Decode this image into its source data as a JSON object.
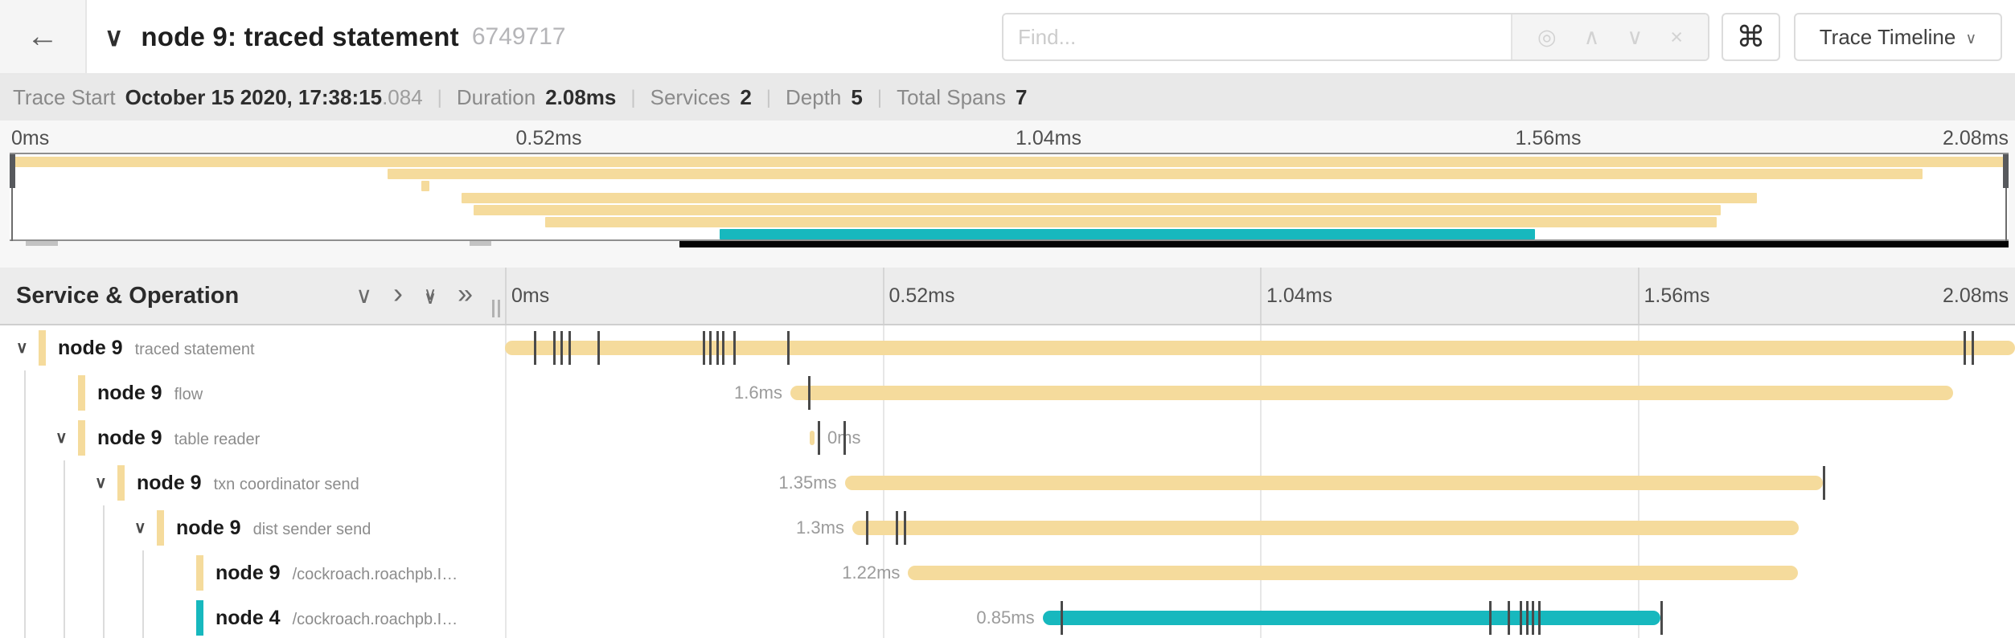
{
  "header": {
    "back_icon": "←",
    "collapse_icon": "∨",
    "title": "node 9: traced statement",
    "trace_id_short": "6749717",
    "find_placeholder": "Find...",
    "find_tools": [
      {
        "name": "locate-icon",
        "glyph": "◎"
      },
      {
        "name": "prev-result-icon",
        "glyph": "∧"
      },
      {
        "name": "next-result-icon",
        "glyph": "∨"
      },
      {
        "name": "clear-find-icon",
        "glyph": "×"
      }
    ],
    "shortcut_icon": "⌘",
    "view_selector": {
      "label": "Trace Timeline",
      "chevron": "∨"
    }
  },
  "summary": {
    "items": [
      {
        "label": "Trace Start",
        "value": "October 15 2020, 17:38:15",
        "suffix": ".084"
      },
      {
        "label": "Duration",
        "value": "2.08ms",
        "suffix": ""
      },
      {
        "label": "Services",
        "value": "2",
        "suffix": ""
      },
      {
        "label": "Depth",
        "value": "5",
        "suffix": ""
      },
      {
        "label": "Total Spans",
        "value": "7",
        "suffix": ""
      }
    ],
    "separator": "|"
  },
  "axis": {
    "ticks": [
      {
        "label": "0ms",
        "pct": 0
      },
      {
        "label": "0.52ms",
        "pct": 25
      },
      {
        "label": "1.04ms",
        "pct": 50
      },
      {
        "label": "1.56ms",
        "pct": 75
      },
      {
        "label": "2.08ms",
        "pct": 100
      }
    ]
  },
  "minimap": {
    "bars": [
      {
        "start": 0,
        "end": 100,
        "color": "tan"
      },
      {
        "start": 18.9,
        "end": 95.7,
        "color": "tan"
      },
      {
        "start": 20.6,
        "end": 21.0,
        "color": "tan"
      },
      {
        "start": 22.6,
        "end": 87.4,
        "color": "tan"
      },
      {
        "start": 23.2,
        "end": 85.6,
        "color": "tan"
      },
      {
        "start": 26.8,
        "end": 85.4,
        "color": "tan"
      },
      {
        "start": 35.5,
        "end": 76.3,
        "color": "teal"
      }
    ],
    "viewport": {
      "thumb_start_pct": 33.5,
      "nubs": [
        {
          "start_pct": 0.8,
          "width_pct": 1.6
        },
        {
          "start_pct": 23.0,
          "width_pct": 1.1
        }
      ]
    }
  },
  "grid_header": {
    "title": "Service & Operation"
  },
  "spans": [
    {
      "service": "node 9",
      "operation": "traced statement",
      "depth": 0,
      "has_children": true,
      "color": "tan",
      "duration_label": "",
      "label_side": "none",
      "start": 0,
      "end": 100,
      "ticks": [
        1.9,
        3.2,
        3.7,
        4.2,
        6.1,
        13.1,
        13.5,
        14.0,
        14.4,
        15.1,
        18.7,
        96.6,
        97.1
      ]
    },
    {
      "service": "node 9",
      "operation": "flow",
      "depth": 1,
      "has_children": false,
      "color": "tan",
      "duration_label": "1.6ms",
      "label_side": "left",
      "start": 18.9,
      "end": 95.9,
      "ticks": [
        20.1
      ]
    },
    {
      "service": "node 9",
      "operation": "table reader",
      "depth": 1,
      "has_children": true,
      "color": "tan",
      "duration_label": "0ms",
      "label_side": "right",
      "start": 20.2,
      "end": 20.5,
      "ticks": [
        20.7,
        22.4
      ]
    },
    {
      "service": "node 9",
      "operation": "txn coordinator send",
      "depth": 2,
      "has_children": true,
      "color": "tan",
      "duration_label": "1.35ms",
      "label_side": "left",
      "start": 22.5,
      "end": 87.3,
      "ticks": [
        87.3
      ]
    },
    {
      "service": "node 9",
      "operation": "dist sender send",
      "depth": 3,
      "has_children": true,
      "color": "tan",
      "duration_label": "1.3ms",
      "label_side": "left",
      "start": 23.0,
      "end": 85.7,
      "ticks": [
        23.9,
        25.9,
        26.4
      ]
    },
    {
      "service": "node 9",
      "operation": "/cockroach.roachpb.I…",
      "depth": 4,
      "has_children": false,
      "color": "tan",
      "duration_label": "1.22ms",
      "label_side": "left",
      "start": 26.7,
      "end": 85.6,
      "ticks": []
    },
    {
      "service": "node 4",
      "operation": "/cockroach.roachpb.I…",
      "depth": 4,
      "has_children": false,
      "color": "teal",
      "duration_label": "0.85ms",
      "label_side": "left",
      "start": 35.6,
      "end": 76.5,
      "ticks": [
        36.8,
        65.2,
        66.4,
        67.2,
        67.6,
        68.0,
        68.4,
        76.5
      ]
    }
  ],
  "colors": {
    "tan": "#F5DB9C",
    "teal": "#17B8BE",
    "tick": "#4a4a4a"
  }
}
